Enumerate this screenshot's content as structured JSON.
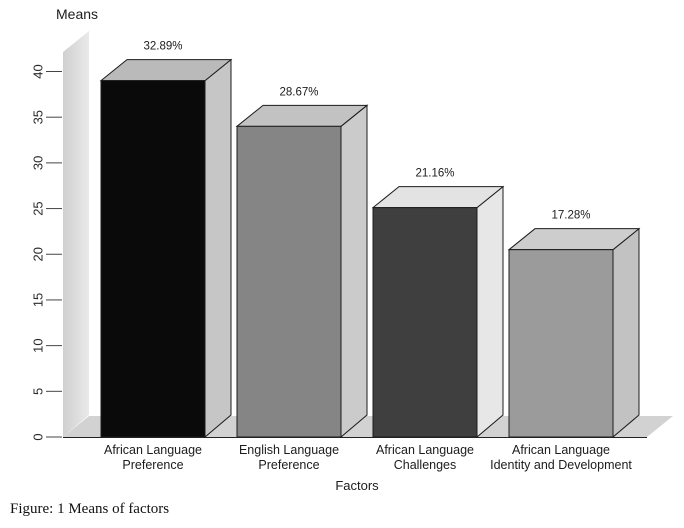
{
  "figure": {
    "y_axis_title": "Means",
    "x_axis_title": "Factors",
    "caption": "Figure: 1 Means of factors"
  },
  "chart_data": {
    "type": "bar",
    "style": "3d-columns",
    "title": "Means",
    "xlabel": "Factors",
    "ylabel": "Means",
    "ylim": [
      0,
      40
    ],
    "yticks": [
      0,
      5,
      10,
      15,
      20,
      25,
      30,
      35,
      40
    ],
    "grid": false,
    "legend": null,
    "categories": [
      "African Language Preference",
      "English Language Preference",
      "African Language Challenges",
      "African Language Identity and Development"
    ],
    "category_label_lines": [
      [
        "African Language",
        "Preference"
      ],
      [
        "English Language",
        "Preference"
      ],
      [
        "African Language",
        "Challenges"
      ],
      [
        "African Language",
        "Identity and Development"
      ]
    ],
    "series": [
      {
        "name": "Means",
        "values": [
          39,
          34,
          25.1,
          20.5
        ],
        "percent_labels": [
          "32.89%",
          "28.67%",
          "21.16%",
          "17.28%"
        ],
        "percent_values": [
          32.89,
          28.67,
          21.16,
          17.28
        ]
      }
    ],
    "colors": {
      "bar_front": [
        "#0a0a0a",
        "#858585",
        "#3f3f3f",
        "#9b9b9b"
      ],
      "bar_top": [
        "#bababa",
        "#c2c2c2",
        "#e3e3e3",
        "#cdcdcd"
      ],
      "bar_side": [
        "#c6c6c6",
        "#cbcbcb",
        "#e7e7e7",
        "#c2c2c2"
      ],
      "wall": "#d0d0d0",
      "wall_light": "#e9e9e9",
      "floor": "#d2d2d2",
      "outline": "#1c1c1c",
      "text": "#1c1c1c",
      "tick_text": "#2a2a2a"
    }
  }
}
